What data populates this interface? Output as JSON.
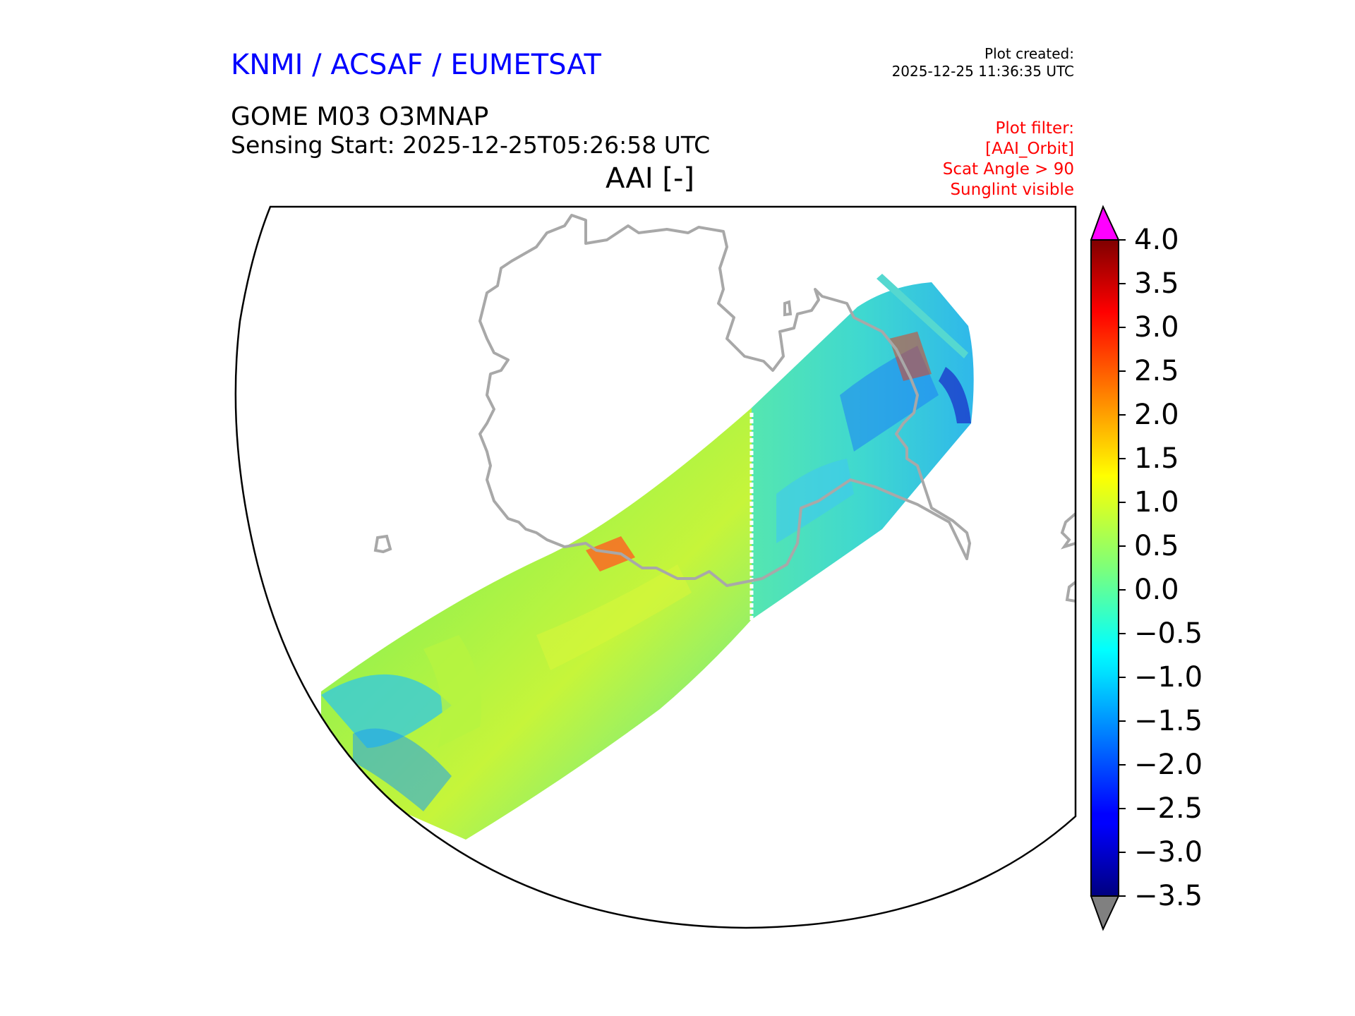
{
  "header": {
    "org_title": "KNMI / ACSAF / EUMETSAT",
    "product": "GOME M03 O3MNAP",
    "sensing_start": "Sensing Start: 2025-12-25T05:26:58 UTC",
    "quantity": "AAI [-]",
    "plot_created_label": "Plot created:",
    "plot_created_time": "2025-12-25 11:36:35 UTC"
  },
  "filter": {
    "lines": [
      "Plot filter:",
      "[AAI_Orbit]",
      "Scat Angle > 90",
      "Sunglint visible"
    ]
  },
  "colors": {
    "org_title": "#0000ff",
    "filter": "#ff0000",
    "coast": "#a8a8a8",
    "over": "#ff00ff",
    "under": "#808080"
  },
  "colorbar": {
    "min": -3.5,
    "max": 4.0,
    "ticks": [
      "4.0",
      "3.5",
      "3.0",
      "2.5",
      "2.0",
      "1.5",
      "1.0",
      "0.5",
      "0.0",
      "−0.5",
      "−1.0",
      "−1.5",
      "−2.0",
      "−2.5",
      "−3.0",
      "−3.5"
    ],
    "tick_values": [
      4.0,
      3.5,
      3.0,
      2.5,
      2.0,
      1.5,
      1.0,
      0.5,
      0.0,
      -0.5,
      -1.0,
      -1.5,
      -2.0,
      -2.5,
      -3.0,
      -3.5
    ],
    "colormap": "jet",
    "extend": "both"
  }
}
